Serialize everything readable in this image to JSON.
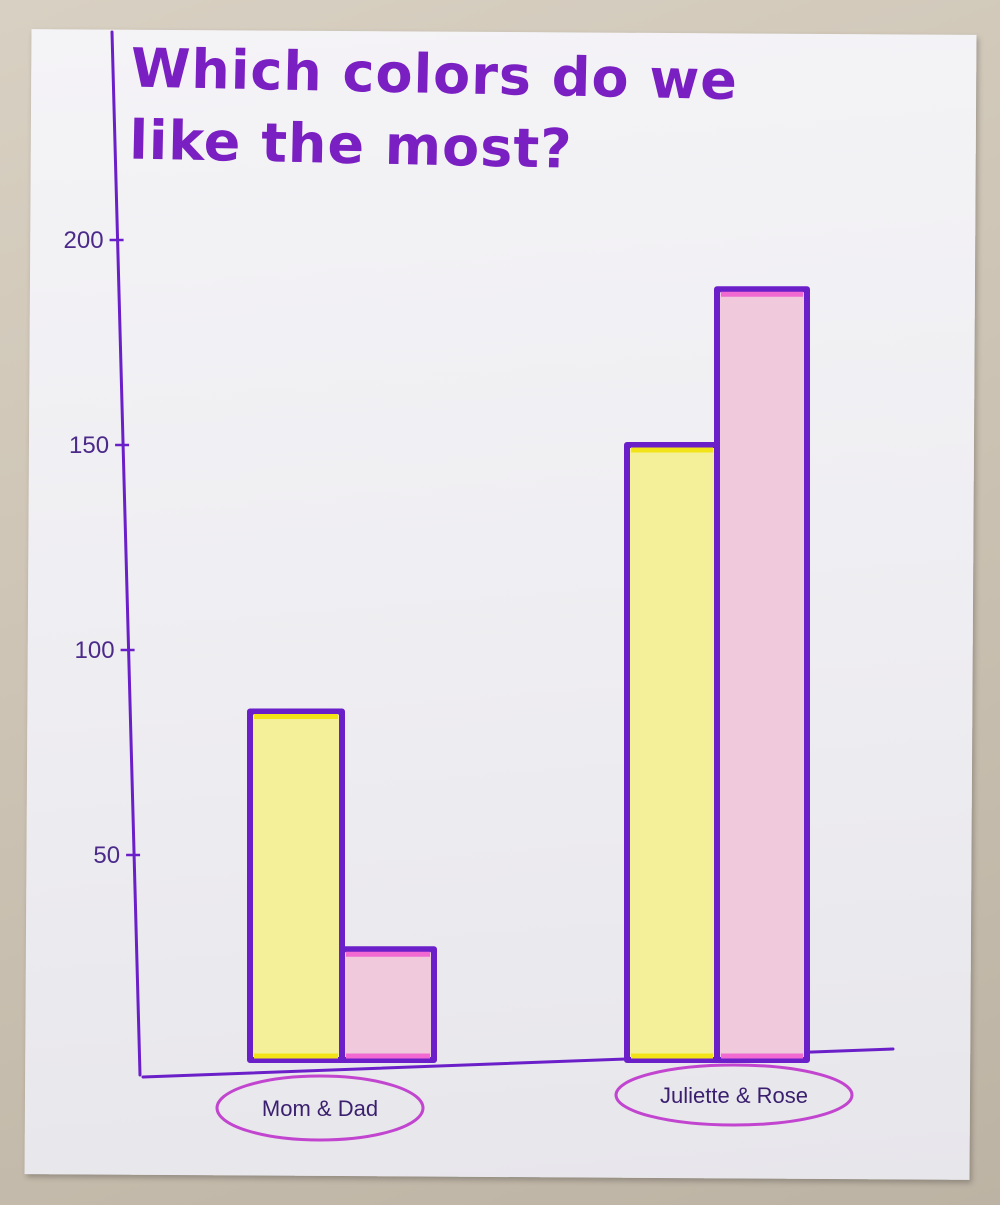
{
  "chart_data": {
    "type": "bar",
    "title": "Which colors do we like the most?",
    "xlabel": "",
    "ylabel": "",
    "categories": [
      "Mom & Dad",
      "Juliette & Rose"
    ],
    "series": [
      {
        "values": [
          85,
          150
        ]
      },
      {
        "values": [
          27,
          188
        ]
      }
    ],
    "ylim": [
      0,
      200
    ],
    "yticks": [
      50,
      100,
      150,
      200
    ],
    "grid": false,
    "colors": {
      "outline": "#6b1fc9",
      "yellow_fill": "#f4f09a",
      "yellow_edge": "#f2e318",
      "pink_fill": "#f1c9dc",
      "pink_edge": "#f06ad2",
      "label_oval": "#c245cf",
      "ink": "#7a1fc2"
    }
  }
}
